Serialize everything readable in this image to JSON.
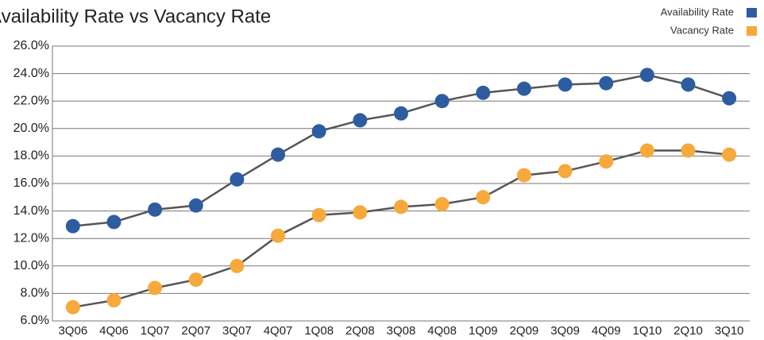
{
  "chart_data": {
    "type": "line",
    "title": "Availability Rate vs Vacancy Rate",
    "categories": [
      "3Q06",
      "4Q06",
      "1Q07",
      "2Q07",
      "3Q07",
      "4Q07",
      "1Q08",
      "2Q08",
      "3Q08",
      "4Q08",
      "1Q09",
      "2Q09",
      "3Q09",
      "4Q09",
      "1Q10",
      "2Q10",
      "3Q10"
    ],
    "series": [
      {
        "name": "Availability Rate",
        "color": "#2e5ca0",
        "values": [
          12.9,
          13.2,
          14.1,
          14.4,
          16.3,
          18.1,
          19.8,
          20.6,
          21.1,
          22.0,
          22.6,
          22.9,
          23.2,
          23.3,
          23.9,
          23.2,
          22.2
        ]
      },
      {
        "name": "Vacancy Rate",
        "color": "#f7a93b",
        "values": [
          7.0,
          7.5,
          8.4,
          9.0,
          10.0,
          12.2,
          13.7,
          13.9,
          14.3,
          14.5,
          15.0,
          16.6,
          16.9,
          17.6,
          18.4,
          18.4,
          18.1
        ]
      }
    ],
    "line_color": "#555555",
    "ylim": [
      6,
      26
    ],
    "yticks": [
      {
        "value": 6,
        "label": "6.0%"
      },
      {
        "value": 8,
        "label": "8.0%"
      },
      {
        "value": 10,
        "label": "10.0%"
      },
      {
        "value": 12,
        "label": "12.0%"
      },
      {
        "value": 14,
        "label": "14.0%"
      },
      {
        "value": 16,
        "label": "16.0%"
      },
      {
        "value": 18,
        "label": "18.0%"
      },
      {
        "value": 20,
        "label": "20.0%"
      },
      {
        "value": 22,
        "label": "22.0%"
      },
      {
        "value": 24,
        "label": "24.0%"
      },
      {
        "value": 26,
        "label": "26.0%"
      }
    ],
    "grid": true,
    "legend": "top-right"
  }
}
